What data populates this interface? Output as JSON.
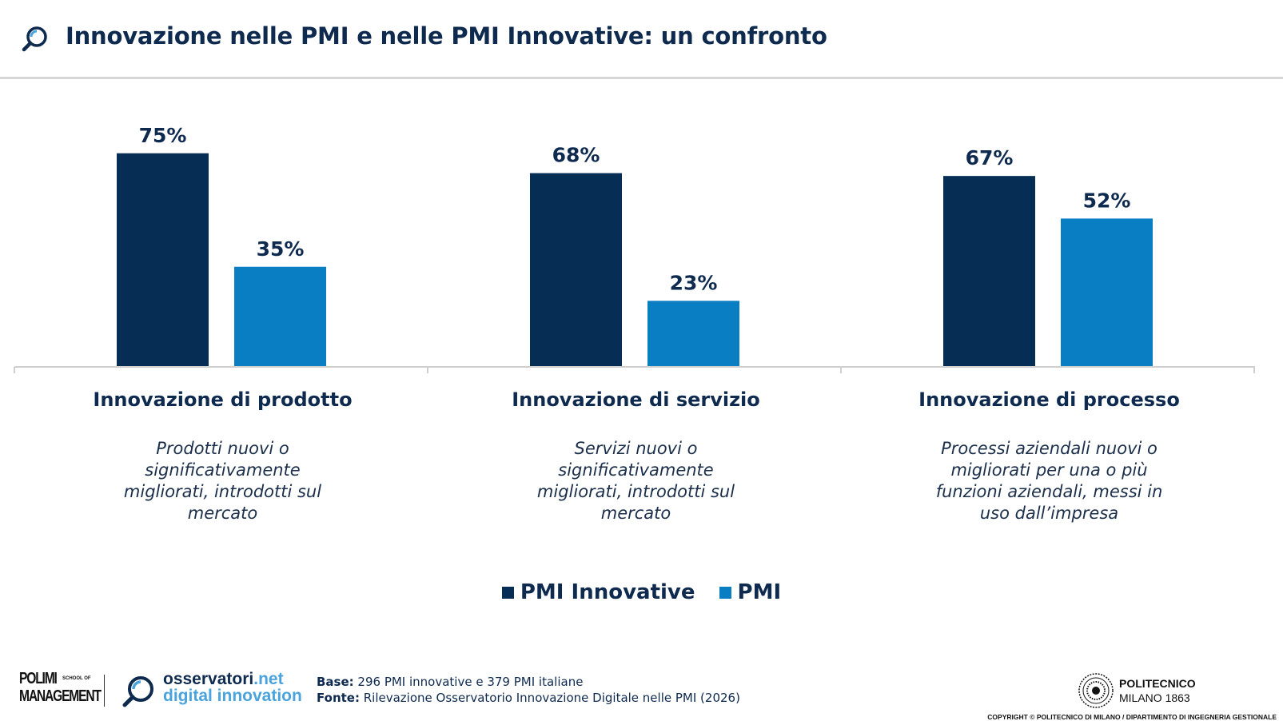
{
  "header": {
    "title": "Innovazione nelle PMI e nelle PMI Innovative: un confronto",
    "icon": "magnifier-icon"
  },
  "colors": {
    "pmi_innovative": "#062d54",
    "pmi": "#0a7ec2",
    "title": "#0e2a4f",
    "axis": "#cfcfcf"
  },
  "chart_data": {
    "type": "bar",
    "categories": [
      "Innovazione di prodotto",
      "Innovazione di servizio",
      "Innovazione di processo"
    ],
    "category_descriptions": [
      "Prodotti nuovi o significativamente migliorati, introdotti sul mercato",
      "Servizi nuovi o significativamente migliorati, introdotti sul mercato",
      "Processi aziendali nuovi o migliorati per una o più funzioni aziendali, messi in uso dall’impresa"
    ],
    "series": [
      {
        "name": "PMI Innovative",
        "values": [
          75,
          68,
          67
        ],
        "labels": [
          "75%",
          "68%",
          "67%"
        ]
      },
      {
        "name": "PMI",
        "values": [
          35,
          23,
          52
        ],
        "labels": [
          "35%",
          "23%",
          "52%"
        ]
      }
    ],
    "unit": "%",
    "ylim": [
      0,
      100
    ],
    "grid": false,
    "legend": "bottom-center"
  },
  "legend": {
    "items": [
      "PMI Innovative",
      "PMI"
    ]
  },
  "footer": {
    "polimi_line1": "POLIMI",
    "polimi_small": "SCHOOL OF",
    "polimi_line2": "MANAGEMENT",
    "osservatori_name": "osservatori",
    "osservatori_domain": ".net",
    "osservatori_tagline": "digital innovation",
    "base_label": "Base:",
    "base_text": " 296 PMI innovative e 379 PMI italiane",
    "fonte_label": "Fonte:",
    "fonte_text": " Rilevazione Osservatorio Innovazione Digitale nelle PMI (2026)",
    "politecnico_name": "POLITECNICO",
    "politecnico_city": "MILANO 1863",
    "copyright": "COPYRIGHT © POLITECNICO DI MILANO / DIPARTIMENTO DI INGEGNERIA GESTIONALE"
  }
}
